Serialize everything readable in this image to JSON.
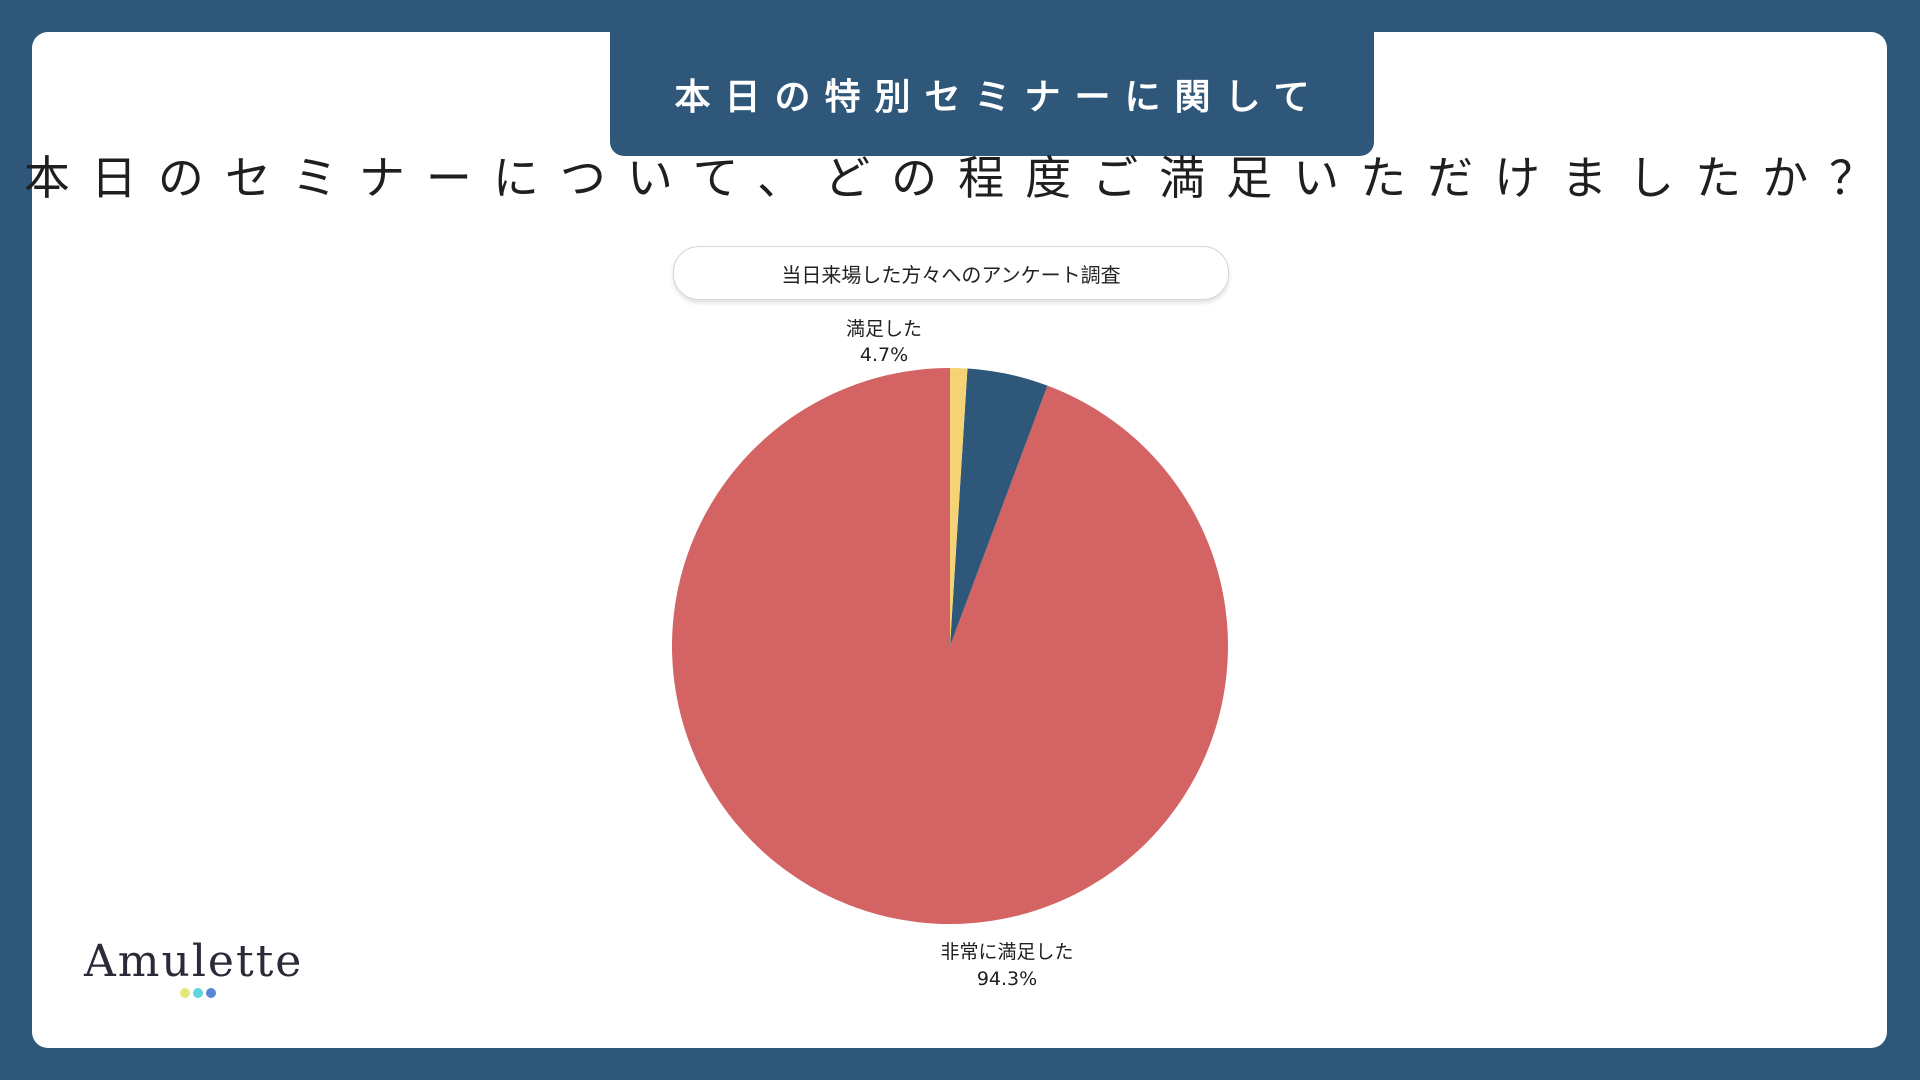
{
  "header": {
    "title": "本日の特別セミナーに関して"
  },
  "question": "本日のセミナーについて、どの程度ご満足いただけましたか？",
  "chart_data": {
    "type": "pie",
    "title": "当日来場した方々へのアンケート調査",
    "slices": [
      {
        "label": "非常に満足した",
        "value": 94.3,
        "display": "94.3%",
        "color": "#d46464"
      },
      {
        "label": "満足した",
        "value": 4.7,
        "display": "4.7%",
        "color": "#2e5779"
      },
      {
        "label": "",
        "value": 1.0,
        "display": "",
        "color": "#f5d374"
      }
    ],
    "start_angle": "12 o'clock, counter-clockwise order"
  },
  "logo": {
    "text": "Amulette",
    "dot_colors": [
      "#e2e87a",
      "#5fd3e0",
      "#5b86d6"
    ]
  }
}
